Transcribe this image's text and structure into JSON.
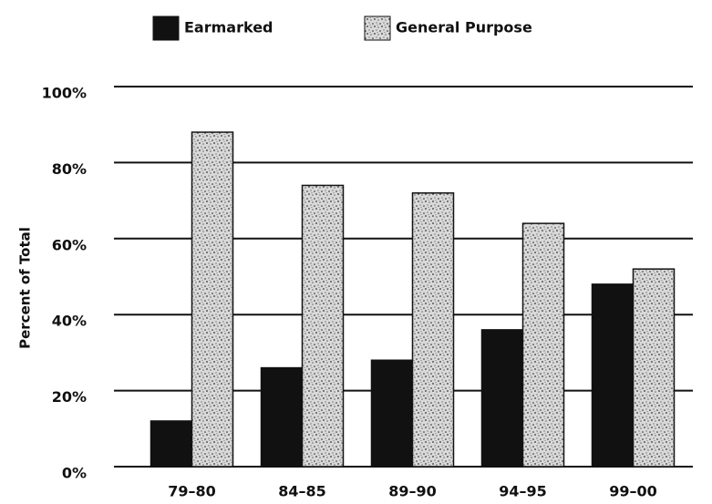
{
  "chart_data": {
    "type": "bar",
    "categories": [
      "79–80",
      "84–85",
      "89–90",
      "94–95",
      "99–00"
    ],
    "series": [
      {
        "name": "Earmarked",
        "color": "#111111",
        "values": [
          12,
          26,
          28,
          36,
          48
        ]
      },
      {
        "name": "General Purpose",
        "color": "#d9d9d9",
        "values": [
          88,
          74,
          72,
          64,
          52
        ]
      }
    ],
    "y_label": "Percent of Total",
    "ylim": [
      0,
      100
    ],
    "yticks": [
      {
        "value": 0,
        "label": "0%"
      },
      {
        "value": 20,
        "label": "20%"
      },
      {
        "value": 40,
        "label": "40%"
      },
      {
        "value": 60,
        "label": "60%"
      },
      {
        "value": 80,
        "label": "80%"
      },
      {
        "value": 100,
        "label": "100%"
      }
    ],
    "grid": true
  }
}
